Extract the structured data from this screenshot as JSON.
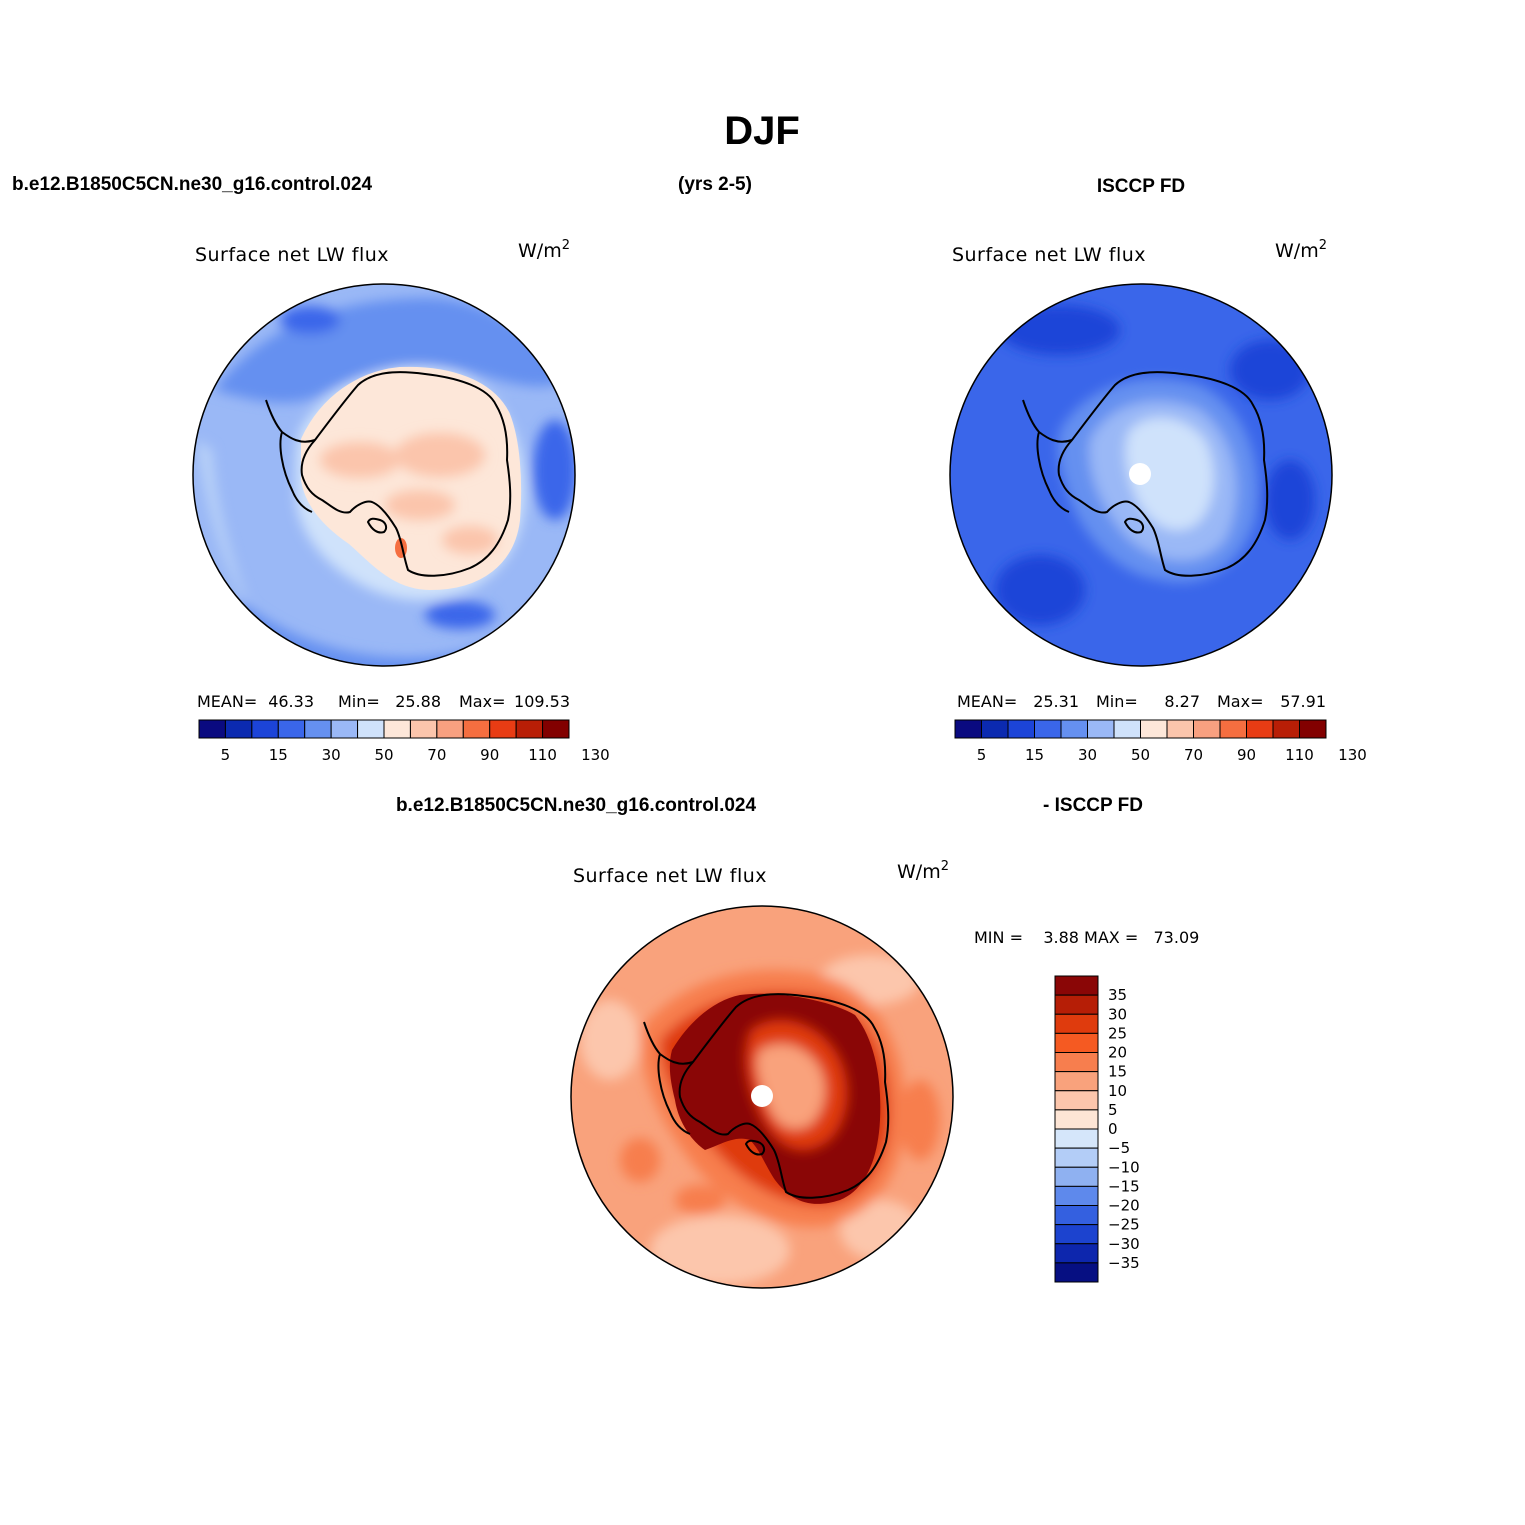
{
  "figure": {
    "season_title": "DJF",
    "case_name": "b.e12.B1850C5CN.ne30_g16.control.024",
    "years": "(yrs 2-5)",
    "obs_name": "ISCCP FD",
    "diff_left": "b.e12.B1850C5CN.ne30_g16.control.024",
    "diff_right": "- ISCCP FD"
  },
  "panels": [
    {
      "id": "model",
      "variable": "Surface net LW flux",
      "units_base": "W/m",
      "units_exp": "2",
      "stats": {
        "mean_label": "MEAN=",
        "mean": "46.33",
        "min_label": "Min=",
        "min": "25.88",
        "max_label": "Max=",
        "max": "109.53"
      }
    },
    {
      "id": "obs",
      "variable": "Surface net LW flux",
      "units_base": "W/m",
      "units_exp": "2",
      "stats": {
        "mean_label": "MEAN=",
        "mean": "25.31",
        "min_label": "Min=",
        "min": "8.27",
        "max_label": "Max=",
        "max": "57.91"
      }
    },
    {
      "id": "diff",
      "variable": "Surface net LW flux",
      "units_base": "W/m",
      "units_exp": "2",
      "minmax_text": "MIN =    3.88 MAX =   73.09"
    }
  ],
  "abs_colorbar": {
    "colors": [
      "#0a0a80",
      "#0b2ab0",
      "#1c44d8",
      "#3a66ea",
      "#6590f0",
      "#9ab8f6",
      "#cfe2fb",
      "#fde7d9",
      "#fbc5ac",
      "#f8a080",
      "#f56e40",
      "#e83c14",
      "#b81e06",
      "#820000"
    ],
    "labels": [
      "5",
      "15",
      "30",
      "50",
      "70",
      "90",
      "110",
      "130"
    ]
  },
  "diff_colorbar": {
    "colors_top_to_bottom": [
      "#8a0606",
      "#b61e06",
      "#df3b0d",
      "#f55a22",
      "#f77e4e",
      "#f9a27c",
      "#fcc6ac",
      "#fde5d5",
      "#d5e6fa",
      "#b3cdf7",
      "#8fb1f1",
      "#5e89ec",
      "#3460e0",
      "#1c43cf",
      "#0d26ad",
      "#060f82"
    ],
    "labels": [
      "35",
      "30",
      "25",
      "20",
      "15",
      "10",
      "5",
      "0",
      "−5",
      "−10",
      "−15",
      "−20",
      "−25",
      "−30",
      "−35"
    ]
  }
}
